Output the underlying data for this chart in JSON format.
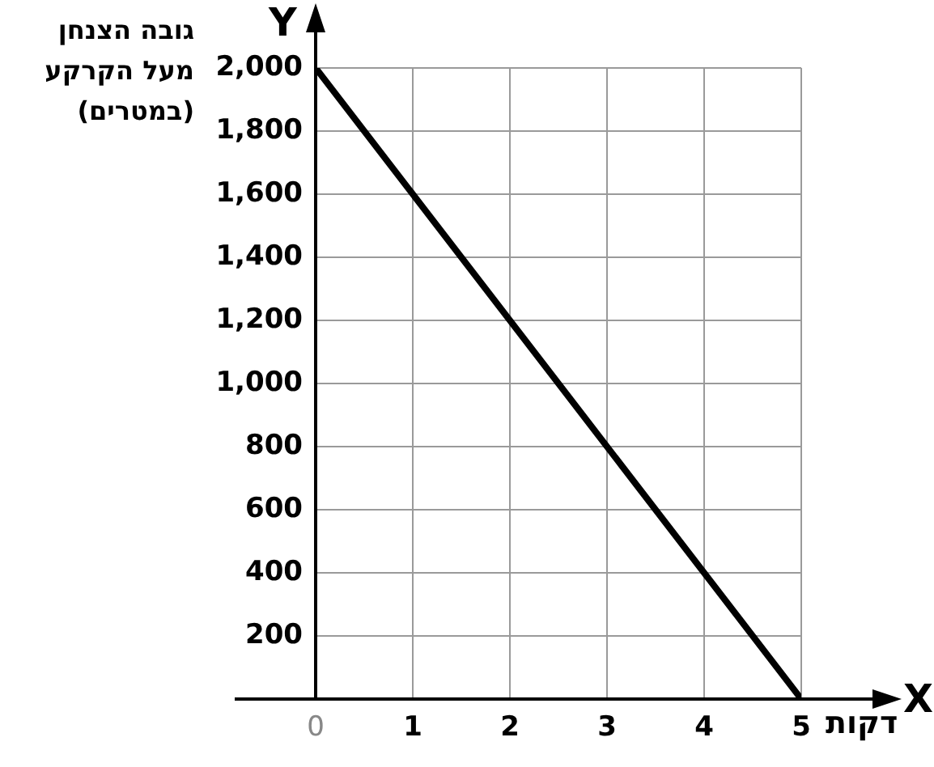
{
  "chart_data": {
    "type": "line",
    "ylabel": "גובה הצנחן מעל הקרקע (במטרים)",
    "xlabel": "דקות",
    "annotations": [
      "Y",
      "X"
    ],
    "x": [
      0,
      5
    ],
    "series": [
      {
        "color": "#000000",
        "values": [
          2000,
          0
        ]
      }
    ],
    "xlim": [
      0,
      5
    ],
    "ylim": [
      0,
      2000
    ],
    "xticks": [
      0,
      1,
      2,
      3,
      4,
      5
    ],
    "yticks": [
      {
        "value": 0,
        "label": null
      },
      200,
      400,
      600,
      800,
      {
        "value": 1000,
        "label": "1,000"
      },
      {
        "value": 1200,
        "label": "1,200"
      },
      {
        "value": 1400,
        "label": "1,400"
      },
      {
        "value": 1600,
        "label": "1,600"
      },
      {
        "value": 1800,
        "label": "1,800"
      },
      {
        "value": 2000,
        "label": "2,000"
      }
    ],
    "grid": true,
    "legend": false,
    "marker": "none",
    "line_style": "solid"
  }
}
